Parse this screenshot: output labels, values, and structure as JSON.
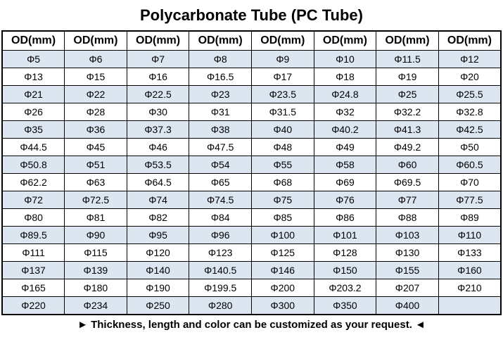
{
  "title": "Polycarbonate Tube (PC Tube)",
  "table": {
    "header_label": "OD(mm)",
    "columns": 8,
    "stripe_color": "#dce6f1",
    "border_color": "#000000",
    "rows": [
      [
        "Φ5",
        "Φ6",
        "Φ7",
        "Φ8",
        "Φ9",
        "Φ10",
        "Φ11.5",
        "Φ12"
      ],
      [
        "Φ13",
        "Φ15",
        "Φ16",
        "Φ16.5",
        "Φ17",
        "Φ18",
        "Φ19",
        "Φ20"
      ],
      [
        "Φ21",
        "Φ22",
        "Φ22.5",
        "Φ23",
        "Φ23.5",
        "Φ24.8",
        "Φ25",
        "Φ25.5"
      ],
      [
        "Φ26",
        "Φ28",
        "Φ30",
        "Φ31",
        "Φ31.5",
        "Φ32",
        "Φ32.2",
        "Φ32.8"
      ],
      [
        "Φ35",
        "Φ36",
        "Φ37.3",
        "Φ38",
        "Φ40",
        "Φ40.2",
        "Φ41.3",
        "Φ42.5"
      ],
      [
        "Φ44.5",
        "Φ45",
        "Φ46",
        "Φ47.5",
        "Φ48",
        "Φ49",
        "Φ49.2",
        "Φ50"
      ],
      [
        "Φ50.8",
        "Φ51",
        "Φ53.5",
        "Φ54",
        "Φ55",
        "Φ58",
        "Φ60",
        "Φ60.5"
      ],
      [
        "Φ62.2",
        "Φ63",
        "Φ64.5",
        "Φ65",
        "Φ68",
        "Φ69",
        "Φ69.5",
        "Φ70"
      ],
      [
        "Φ72",
        "Φ72.5",
        "Φ74",
        "Φ74.5",
        "Φ75",
        "Φ76",
        "Φ77",
        "Φ77.5"
      ],
      [
        "Φ80",
        "Φ81",
        "Φ82",
        "Φ84",
        "Φ85",
        "Φ86",
        "Φ88",
        "Φ89"
      ],
      [
        "Φ89.5",
        "Φ90",
        "Φ95",
        "Φ96",
        "Φ100",
        "Φ101",
        "Φ103",
        "Φ110"
      ],
      [
        "Φ111",
        "Φ115",
        "Φ120",
        "Φ123",
        "Φ125",
        "Φ128",
        "Φ130",
        "Φ133"
      ],
      [
        "Φ137",
        "Φ139",
        "Φ140",
        "Φ140.5",
        "Φ146",
        "Φ150",
        "Φ155",
        "Φ160"
      ],
      [
        "Φ165",
        "Φ180",
        "Φ190",
        "Φ199.5",
        "Φ200",
        "Φ203.2",
        "Φ207",
        "Φ210"
      ],
      [
        "Φ220",
        "Φ234",
        "Φ250",
        "Φ280",
        "Φ300",
        "Φ350",
        "Φ400",
        ""
      ]
    ]
  },
  "footer": {
    "note": "► Thickness, length and color can be customized as your request. ◄"
  }
}
